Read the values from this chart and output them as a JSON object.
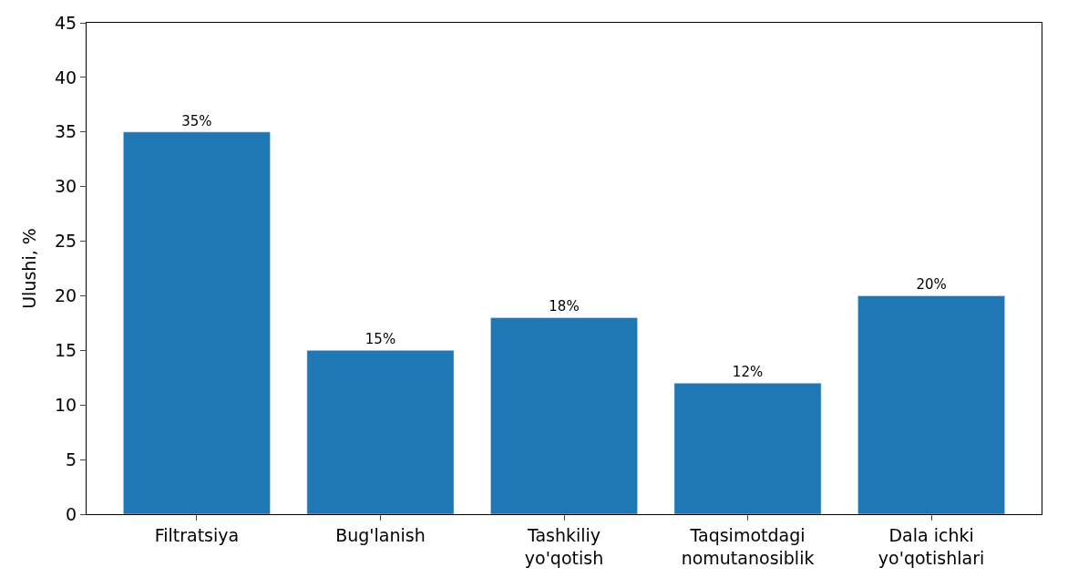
{
  "chart_data": {
    "type": "bar",
    "ylabel": "Ulushi, %",
    "categories": [
      "Filtratsiya",
      "Bug'lanish",
      "Tashkiliy\nyo'qotish",
      "Taqsimotdagi\nnomutanosiblik",
      "Dala ichki\nyo'qotishlari"
    ],
    "values": [
      35,
      15,
      18,
      12,
      20
    ],
    "value_labels": [
      "35%",
      "15%",
      "18%",
      "12%",
      "20%"
    ],
    "color": "#1f77b4",
    "ylim": [
      0,
      45
    ],
    "yticks": [
      0,
      5,
      10,
      15,
      20,
      25,
      30,
      35,
      40,
      45
    ],
    "grid": false,
    "legend": false
  }
}
